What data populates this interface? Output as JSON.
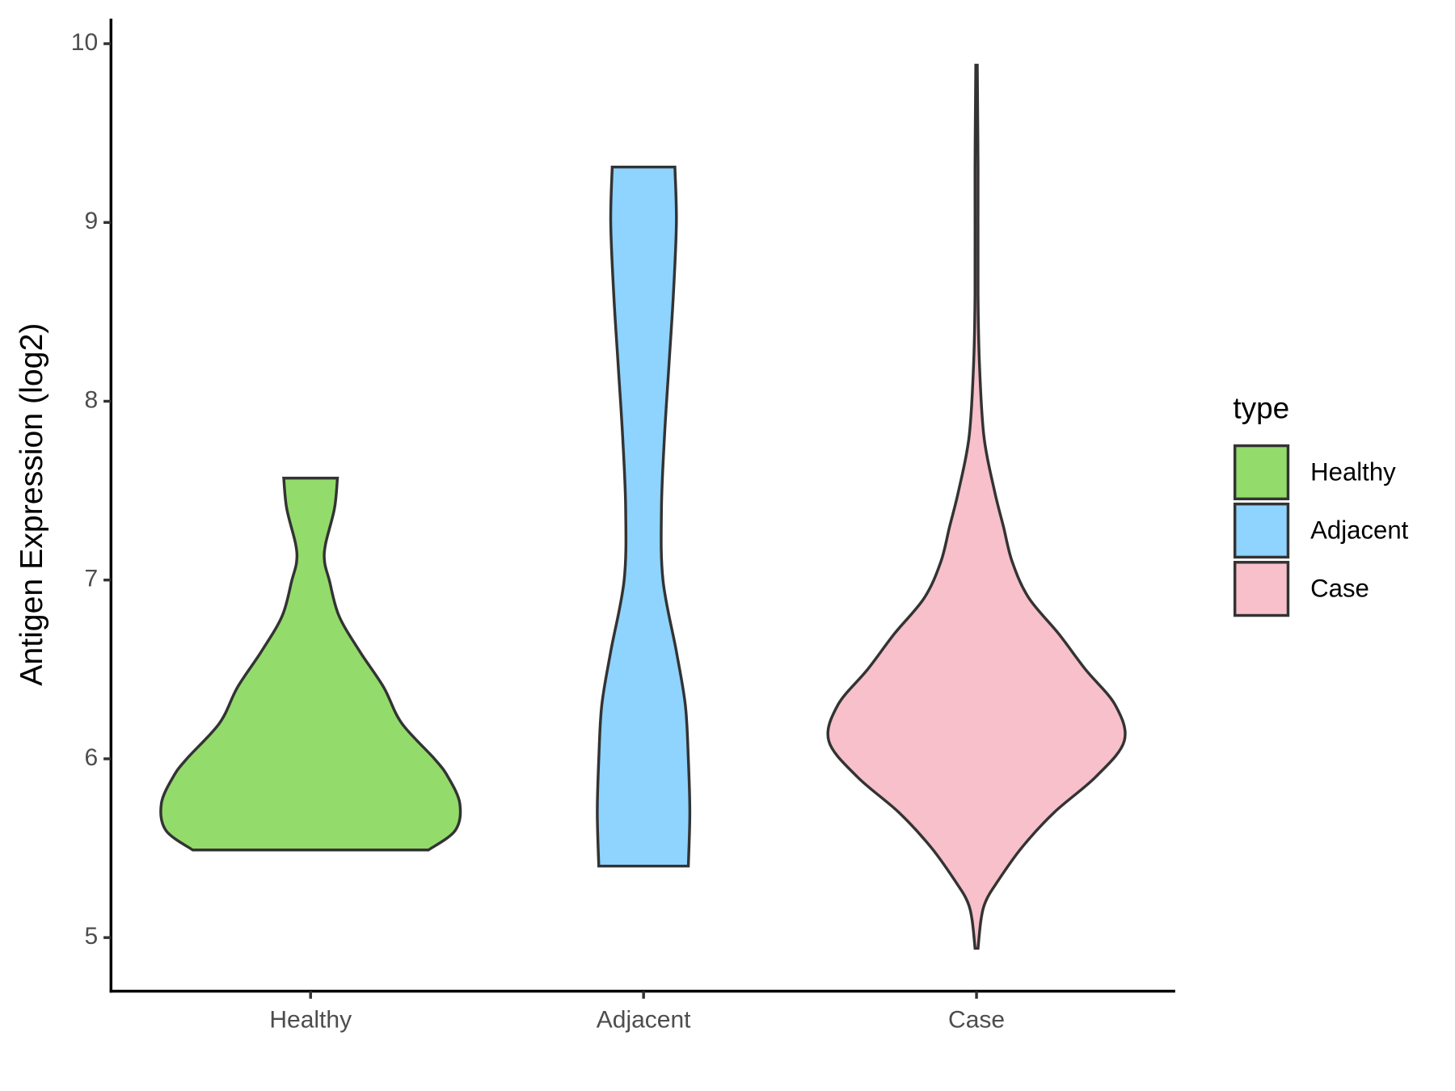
{
  "chart_data": {
    "type": "violin",
    "y_label": "Antigen Expression (log2)",
    "categories": [
      "Healthy",
      "Adjacent",
      "Case"
    ],
    "legend_title": "type",
    "legend_position": "right",
    "ylim": [
      4.7,
      10.14
    ],
    "yticks": [
      5,
      6,
      7,
      8,
      9,
      10
    ],
    "series": [
      {
        "name": "Healthy",
        "color": "#93dc6b",
        "y": [
          5.49,
          5.6,
          5.75,
          5.9,
          6.0,
          6.2,
          6.4,
          6.6,
          6.8,
          7.0,
          7.1,
          7.2,
          7.4,
          7.57
        ],
        "width": [
          0.79,
          0.97,
          1.0,
          0.92,
          0.83,
          0.61,
          0.49,
          0.33,
          0.19,
          0.125,
          0.094,
          0.1,
          0.16,
          0.18
        ]
      },
      {
        "name": "Adjacent",
        "color": "#8fd3ff",
        "y": [
          5.4,
          5.7,
          6.0,
          6.3,
          6.6,
          7.0,
          7.4,
          7.8,
          8.2,
          8.6,
          9.0,
          9.31
        ],
        "width": [
          0.3,
          0.31,
          0.3,
          0.28,
          0.22,
          0.13,
          0.12,
          0.14,
          0.17,
          0.2,
          0.22,
          0.21
        ]
      },
      {
        "name": "Case",
        "color": "#f7c0cb",
        "y": [
          4.94,
          5.1,
          5.2,
          5.3,
          5.5,
          5.7,
          5.9,
          6.1,
          6.3,
          6.5,
          6.7,
          6.9,
          7.1,
          7.3,
          7.5,
          7.8,
          8.2,
          8.6,
          9.3,
          9.88
        ],
        "width": [
          0.01,
          0.03,
          0.06,
          0.13,
          0.3,
          0.52,
          0.8,
          0.99,
          0.93,
          0.73,
          0.55,
          0.35,
          0.24,
          0.18,
          0.12,
          0.05,
          0.02,
          0.01,
          0.01,
          0.005
        ]
      }
    ]
  }
}
